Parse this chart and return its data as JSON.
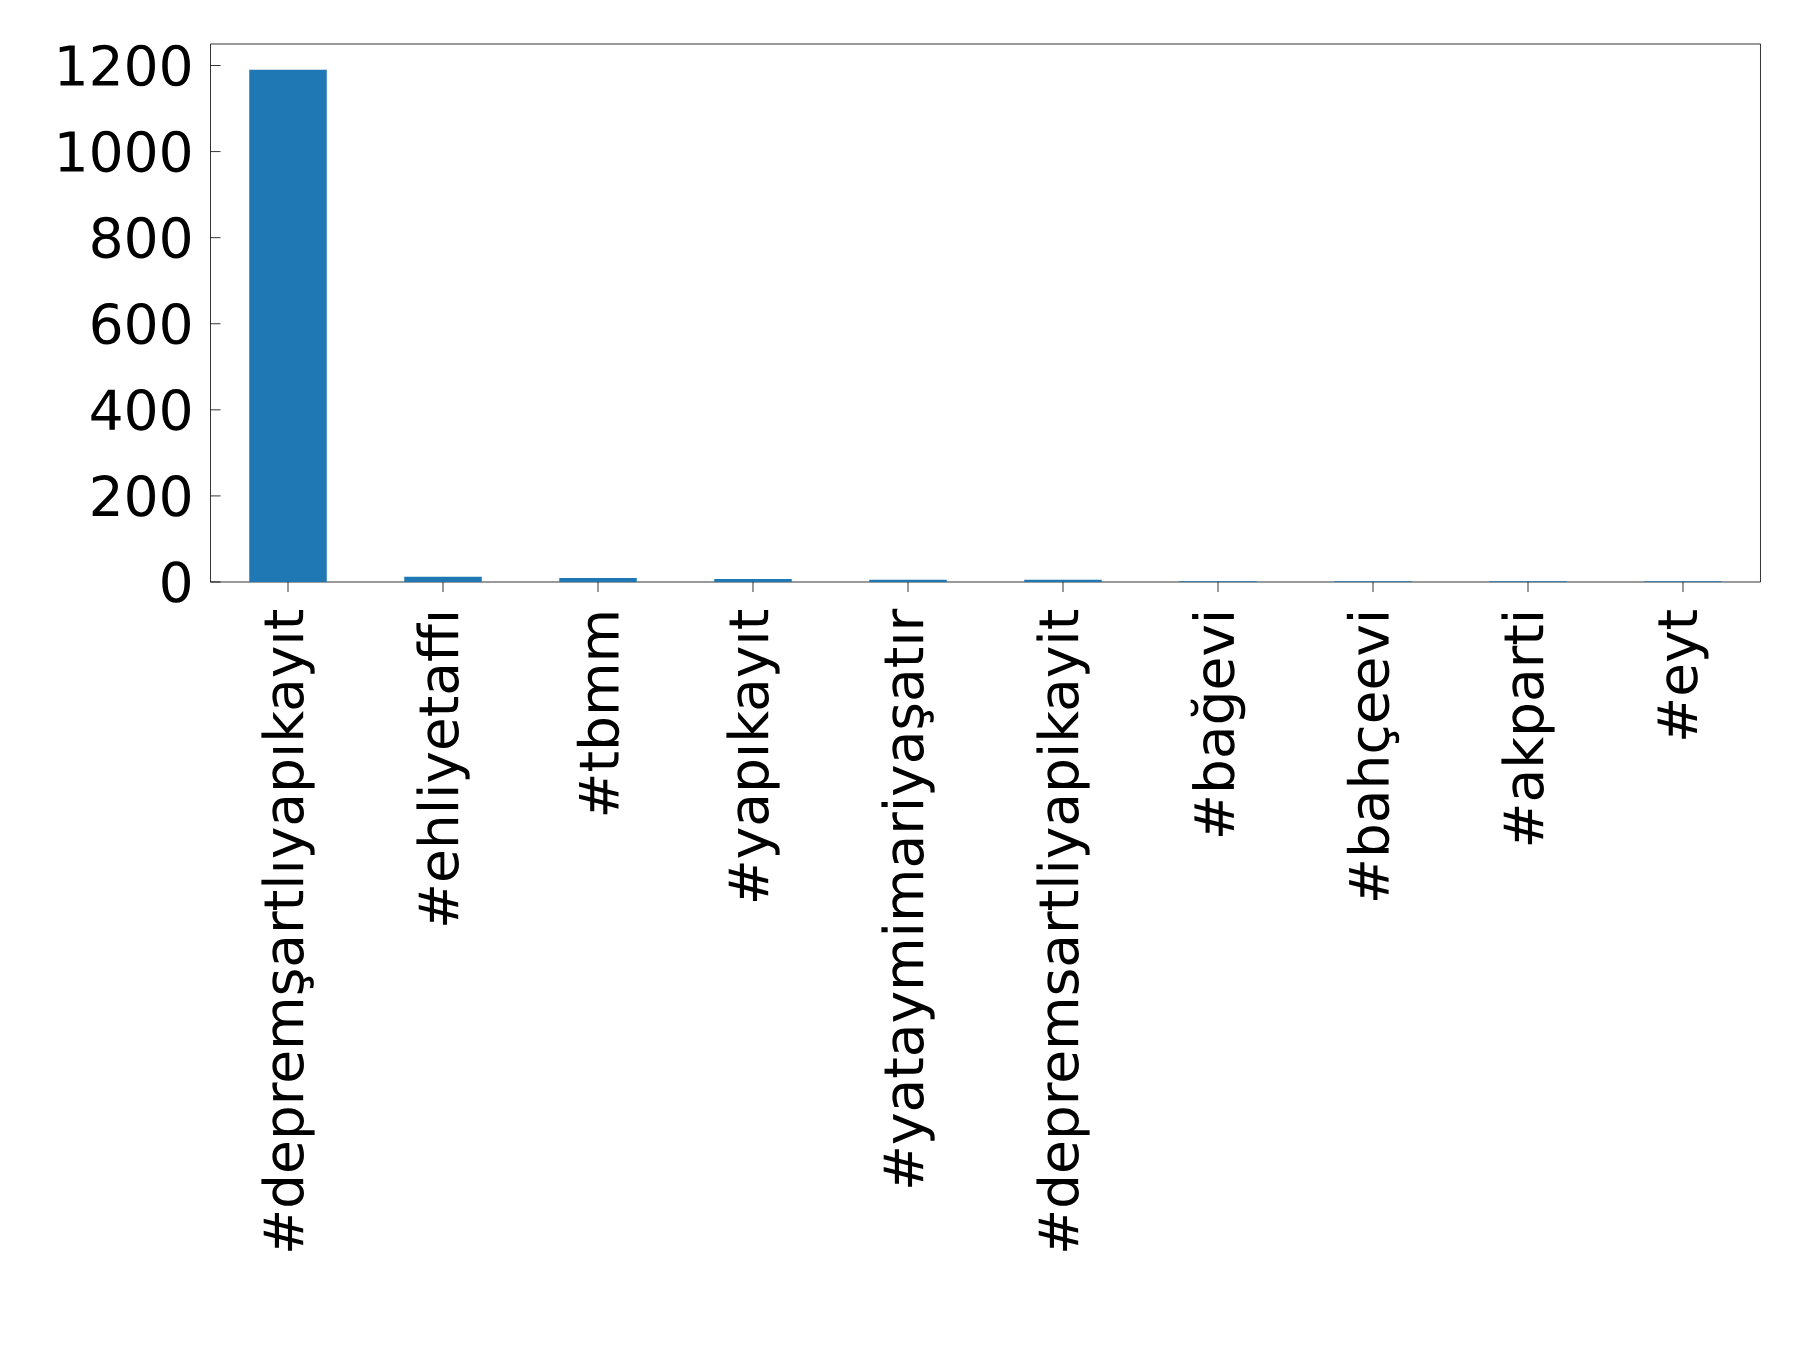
{
  "chart_data": {
    "type": "bar",
    "categories": [
      "#depremşartlıyapıkayıt",
      "#ehliyetaffı",
      "#tbmm",
      "#yapıkayıt",
      "#yataymimariyaşatır",
      "#depremsartliyapikayit",
      "#bağevi",
      "#bahçeevi",
      "#akparti",
      "#eyt"
    ],
    "values": [
      1190,
      12,
      9,
      7,
      5,
      5,
      2,
      2,
      2,
      2
    ],
    "color": "#1f77b4",
    "ylim": [
      0,
      1250
    ],
    "yticks": [
      0,
      200,
      400,
      600,
      800,
      1000,
      1200
    ],
    "grid": false
  }
}
